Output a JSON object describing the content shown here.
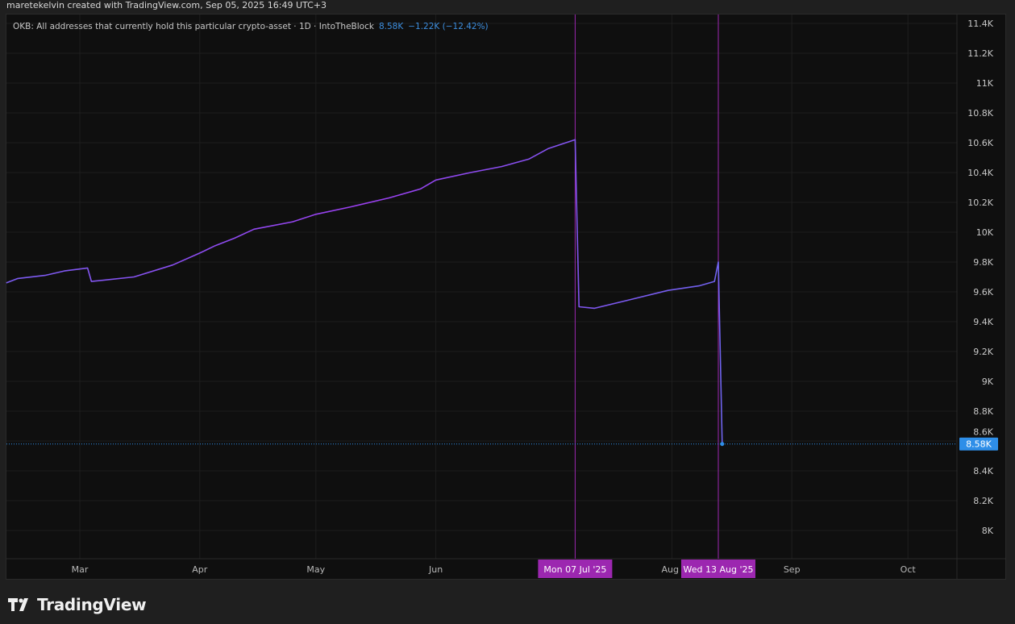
{
  "credit": "maretekelvin created with TradingView.com, Sep 05, 2025 16:49 UTC+3",
  "legend": {
    "title": "OKB: All addresses that currently hold this particular crypto-asset · 1D · IntoTheBlock",
    "last_value": "8.58K",
    "change": "−1.22K (−12.42%)",
    "value_color": "#3d8fe0"
  },
  "branding": {
    "logo_text": "TradingView",
    "logo_icon": "tradingview-logo-icon"
  },
  "chart_data": {
    "type": "line",
    "title": "OKB: All addresses that currently hold this particular crypto-asset",
    "interval": "1D",
    "source": "IntoTheBlock",
    "y_unit": "K",
    "ylim": [
      7.85,
      11.46
    ],
    "xlim": [
      "2025-02-10",
      "2025-10-15"
    ],
    "y_ticks": [
      "11.4K",
      "11.2K",
      "11K",
      "10.8K",
      "10.6K",
      "10.4K",
      "10.2K",
      "10K",
      "9.8K",
      "9.6K",
      "9.4K",
      "9.2K",
      "9K",
      "8.8K",
      "8.6K",
      "8.4K",
      "8.2K",
      "8K"
    ],
    "y_tick_values": [
      11.4,
      11.2,
      11.0,
      10.8,
      10.6,
      10.4,
      10.2,
      10.0,
      9.8,
      9.6,
      9.4,
      9.2,
      9.0,
      8.8,
      8.6,
      8.4,
      8.2,
      8.0
    ],
    "x_ticks": [
      {
        "label": "Mar",
        "date": "2025-03-01"
      },
      {
        "label": "Apr",
        "date": "2025-04-01"
      },
      {
        "label": "May",
        "date": "2025-05-01"
      },
      {
        "label": "Jun",
        "date": "2025-06-01"
      },
      {
        "label": "Aug",
        "date": "2025-08-01"
      },
      {
        "label": "Sep",
        "date": "2025-09-01"
      },
      {
        "label": "Oct",
        "date": "2025-10-01"
      }
    ],
    "grid": true,
    "line_colors": [
      "#7a5cf0",
      "#9b3ff0",
      "#6f63ee"
    ],
    "points": [
      [
        "2025-02-10",
        9.66
      ],
      [
        "2025-02-13",
        9.69
      ],
      [
        "2025-02-20",
        9.71
      ],
      [
        "2025-02-25",
        9.74
      ],
      [
        "2025-03-03",
        9.76
      ],
      [
        "2025-03-04",
        9.67
      ],
      [
        "2025-03-15",
        9.7
      ],
      [
        "2025-03-25",
        9.78
      ],
      [
        "2025-04-01",
        9.86
      ],
      [
        "2025-04-05",
        9.91
      ],
      [
        "2025-04-10",
        9.96
      ],
      [
        "2025-04-15",
        10.02
      ],
      [
        "2025-04-25",
        10.07
      ],
      [
        "2025-05-01",
        10.12
      ],
      [
        "2025-05-10",
        10.17
      ],
      [
        "2025-05-20",
        10.23
      ],
      [
        "2025-05-28",
        10.29
      ],
      [
        "2025-06-01",
        10.35
      ],
      [
        "2025-06-10",
        10.4
      ],
      [
        "2025-06-18",
        10.44
      ],
      [
        "2025-06-25",
        10.49
      ],
      [
        "2025-06-30",
        10.56
      ],
      [
        "2025-07-07",
        10.62
      ],
      [
        "2025-07-08",
        9.5
      ],
      [
        "2025-07-12",
        9.49
      ],
      [
        "2025-07-20",
        9.54
      ],
      [
        "2025-07-31",
        9.61
      ],
      [
        "2025-08-08",
        9.64
      ],
      [
        "2025-08-12",
        9.67
      ],
      [
        "2025-08-13",
        9.8
      ],
      [
        "2025-08-14",
        8.58
      ]
    ],
    "last_price": {
      "value": 8.58,
      "label": "8.58K",
      "color": "#2e8ee8"
    },
    "crosshairs": [
      {
        "date": "2025-07-07",
        "label": "Mon 07 Jul '25"
      },
      {
        "date": "2025-08-13",
        "label": "Wed 13 Aug '25"
      }
    ],
    "crosshair_color": "#9c27b0"
  }
}
